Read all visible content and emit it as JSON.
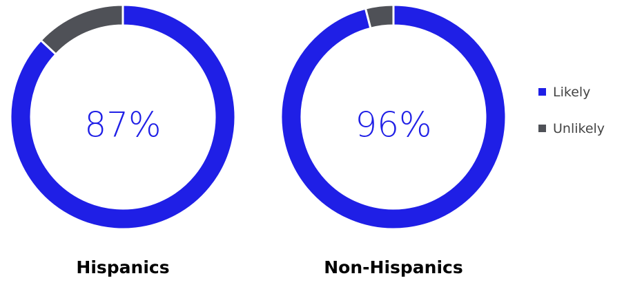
{
  "chart_data": {
    "type": "pie",
    "variant": "donut",
    "categories": [
      "Likely",
      "Unlikely"
    ],
    "colors": {
      "Likely": "#1f1fe6",
      "Unlikely": "#4f5157"
    },
    "legend": {
      "placement": "right",
      "items": [
        {
          "label": "Likely",
          "color": "#1f1fe6"
        },
        {
          "label": "Unlikely",
          "color": "#4f5157"
        }
      ]
    },
    "charts": [
      {
        "group": "Hispanics",
        "center_label": "87%",
        "values": [
          87,
          13
        ]
      },
      {
        "group": "Non-Hispanics",
        "center_label": "96%",
        "values": [
          96,
          4
        ]
      }
    ]
  }
}
